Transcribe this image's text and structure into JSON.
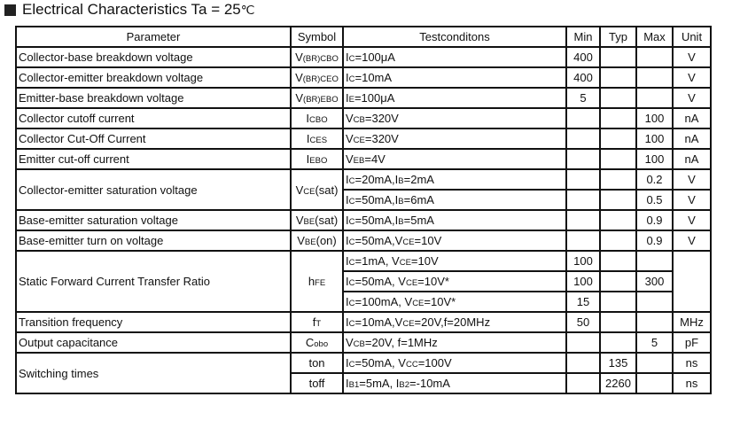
{
  "title": {
    "text": "Electrical Characteristics Ta = 25",
    "unit": "℃"
  },
  "headers": [
    "Parameter",
    "Symbol",
    "Testconditons",
    "Min",
    "Typ",
    "Max",
    "Unit"
  ],
  "rows": [
    {
      "param": "Collector-base breakdown voltage",
      "span": 1,
      "sym": [
        "V",
        {
          "s": "(BR)CBO"
        }
      ],
      "cond": [
        "I",
        {
          "s": "C"
        },
        "=100μA"
      ],
      "min": "400",
      "typ": "",
      "max": "",
      "unit": "V"
    },
    {
      "param": "Collector-emitter breakdown voltage",
      "span": 1,
      "sym": [
        "V",
        {
          "s": "(BR)CEO"
        }
      ],
      "cond": [
        "I",
        {
          "s": "C"
        },
        "=10mA"
      ],
      "min": "400",
      "typ": "",
      "max": "",
      "unit": "V"
    },
    {
      "param": "Emitter-base breakdown voltage",
      "span": 1,
      "sym": [
        "V",
        {
          "s": "(BR)EBO"
        }
      ],
      "cond": [
        "I",
        {
          "s": "E"
        },
        "=100μA"
      ],
      "min": "5",
      "typ": "",
      "max": "",
      "unit": "V"
    },
    {
      "param": "Collector cutoff current",
      "span": 1,
      "sym": [
        "I",
        {
          "s": "CBO"
        }
      ],
      "cond": [
        "V",
        {
          "s": "CB"
        },
        "=320V"
      ],
      "min": "",
      "typ": "",
      "max": "100",
      "unit": "nA"
    },
    {
      "param": "Collector Cut-Off Current",
      "span": 1,
      "sym": [
        "I",
        {
          "s": "CES"
        }
      ],
      "cond": [
        "V",
        {
          "s": "CE"
        },
        "=320V"
      ],
      "min": "",
      "typ": "",
      "max": "100",
      "unit": "nA"
    },
    {
      "param": "Emitter cut-off current",
      "span": 1,
      "sym": [
        "I",
        {
          "s": "EBO"
        }
      ],
      "cond": [
        "V",
        {
          "s": "EB"
        },
        "=4V"
      ],
      "min": "",
      "typ": "",
      "max": "100",
      "unit": "nA"
    },
    {
      "param": "Collector-emitter saturation voltage",
      "span": 2,
      "sym": [
        "V",
        {
          "s": "CE"
        },
        "(sat)"
      ],
      "symspan": 2,
      "cond": [
        "I",
        {
          "s": "C"
        },
        "=20mA,I",
        {
          "s": "B"
        },
        "=2mA"
      ],
      "min": "",
      "typ": "",
      "max": "0.2",
      "unit": "V"
    },
    {
      "cond": [
        "I",
        {
          "s": "C"
        },
        "=50mA,I",
        {
          "s": "B"
        },
        "=6mA"
      ],
      "min": "",
      "typ": "",
      "max": "0.5",
      "unit": "V"
    },
    {
      "param": "Base-emitter saturation voltage",
      "span": 1,
      "sym": [
        "V",
        {
          "s": "BE"
        },
        "(sat)"
      ],
      "cond": [
        "I",
        {
          "s": "C"
        },
        "=50mA,I",
        {
          "s": "B"
        },
        "=5mA"
      ],
      "min": "",
      "typ": "",
      "max": "0.9",
      "unit": "V"
    },
    {
      "param": "Base-emitter turn on voltage",
      "span": 1,
      "sym": [
        "V",
        {
          "s": "BE"
        },
        "(on)"
      ],
      "cond": [
        "I",
        {
          "s": "C"
        },
        "=50mA,V",
        {
          "s": "CE"
        },
        "=10V"
      ],
      "min": "",
      "typ": "",
      "max": "0.9",
      "unit": "V"
    },
    {
      "param": "Static Forward Current Transfer Ratio",
      "span": 3,
      "sym": [
        "h",
        {
          "s": "FE"
        }
      ],
      "symspan": 3,
      "cond": [
        "I",
        {
          "s": "C"
        },
        "=1mA, V",
        {
          "s": "CE"
        },
        "=10V"
      ],
      "min": "100",
      "typ": "",
      "max": "",
      "unit": "",
      "unitspan": 3
    },
    {
      "cond": [
        "I",
        {
          "s": "C"
        },
        "=50mA, V",
        {
          "s": "CE"
        },
        "=10V*"
      ],
      "min": "100",
      "typ": "",
      "max": "300",
      "nounit": true
    },
    {
      "cond": [
        "I",
        {
          "s": "C"
        },
        "=100mA, V",
        {
          "s": "CE"
        },
        "=10V*"
      ],
      "min": "15",
      "typ": "",
      "max": "",
      "nounit": true
    },
    {
      "param": "Transition frequency",
      "span": 1,
      "sym": [
        "f",
        {
          "s": "T"
        }
      ],
      "cond": [
        "I",
        {
          "s": "C"
        },
        "=10mA,V",
        {
          "s": "CE"
        },
        "=20V,f=20MHz"
      ],
      "min": "50",
      "typ": "",
      "max": "",
      "unit": "MHz"
    },
    {
      "param": "Output capacitance",
      "span": 1,
      "sym": [
        "C",
        {
          "s": "obo"
        }
      ],
      "cond": [
        "V",
        {
          "s": "CB"
        },
        "=20V, f=1MHz"
      ],
      "min": "",
      "typ": "",
      "max": "5",
      "unit": "pF"
    },
    {
      "param": "Switching times",
      "span": 2,
      "sym": [
        "ton"
      ],
      "cond": [
        "I",
        {
          "s": "C"
        },
        "=50mA, V",
        {
          "s": "CC"
        },
        "=100V"
      ],
      "min": "",
      "typ": "135",
      "max": "",
      "unit": "ns"
    },
    {
      "sym": [
        "toff"
      ],
      "cond": [
        "I",
        {
          "s": "B1"
        },
        "=5mA, I",
        {
          "s": "B2"
        },
        "=-10mA"
      ],
      "min": "",
      "typ": "2260",
      "max": "",
      "unit": "ns"
    }
  ]
}
